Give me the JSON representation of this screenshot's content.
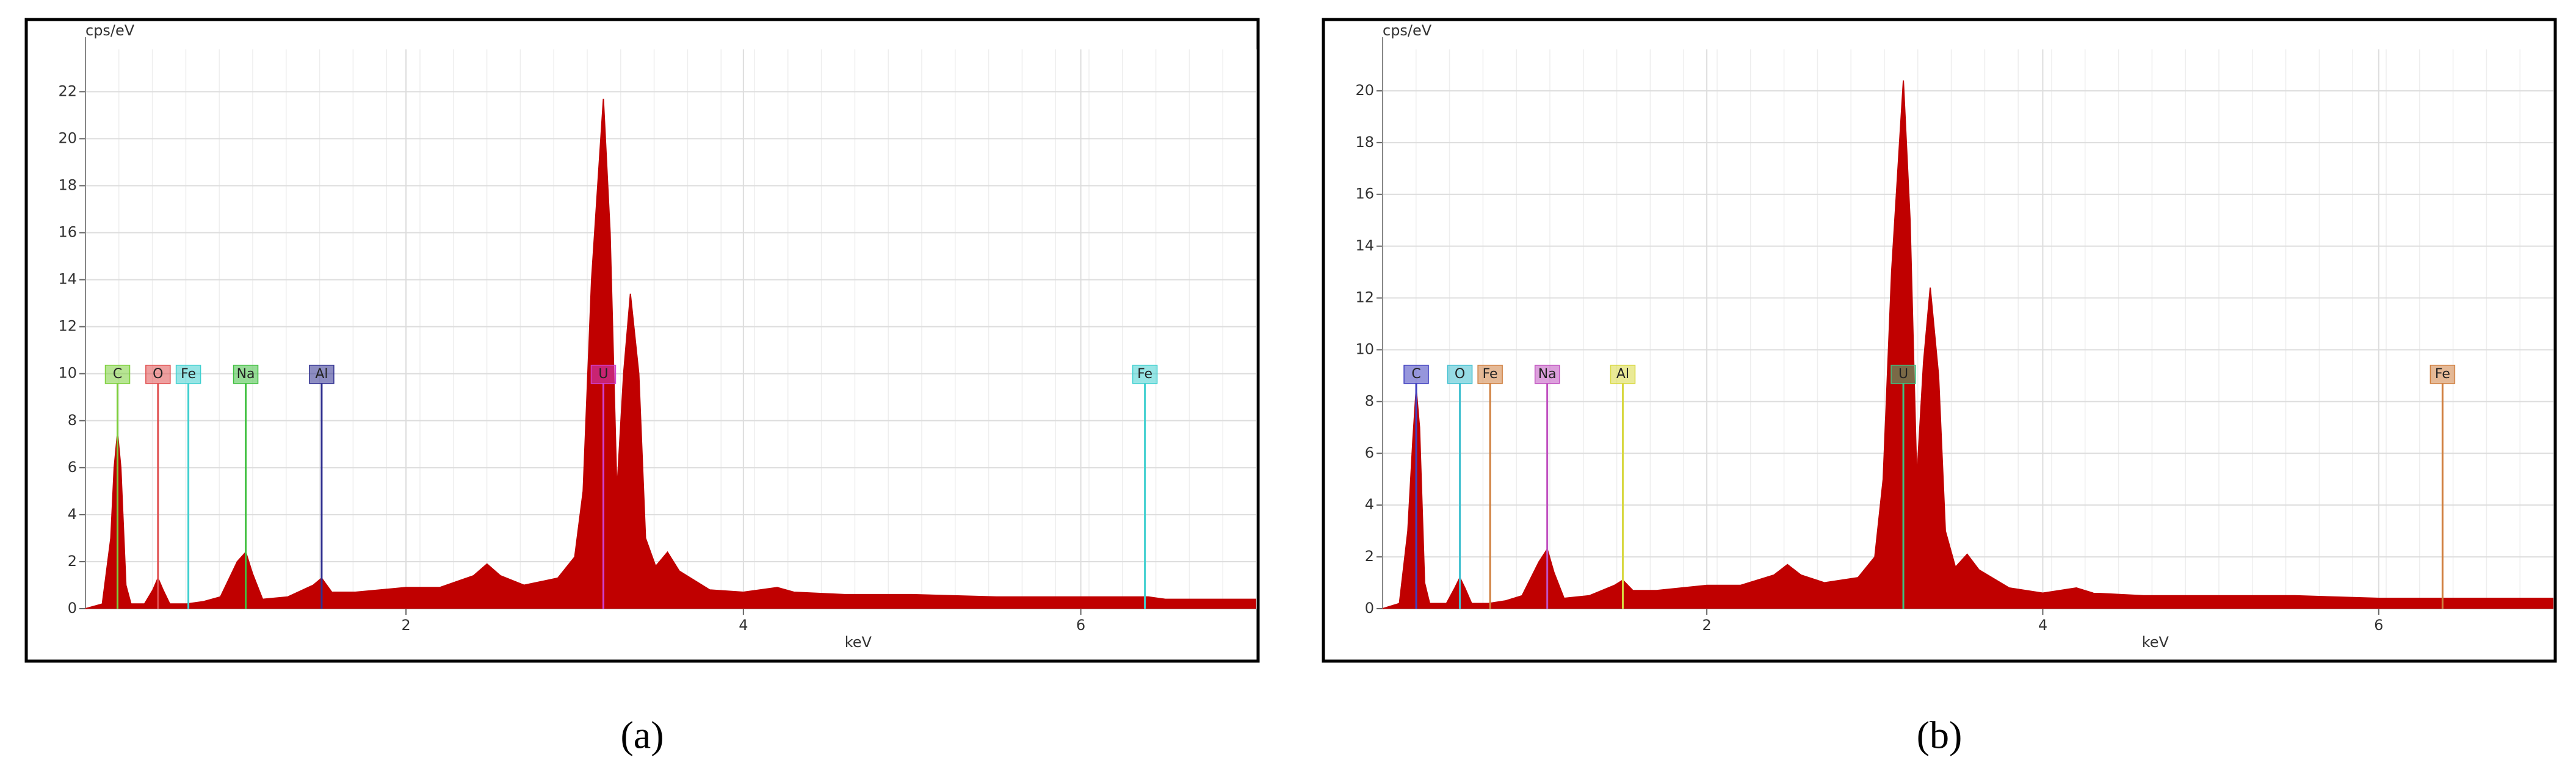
{
  "chart_data": [
    {
      "type": "area",
      "y_label": "cps/eV",
      "x_label": "keV",
      "caption": "(a)",
      "color": "#c00000",
      "xlim": [
        0.1,
        7.04
      ],
      "ylim": [
        0,
        23.8
      ],
      "xticks": [
        2,
        4,
        6
      ],
      "yticks": [
        0,
        2,
        4,
        6,
        8,
        10,
        12,
        14,
        16,
        18,
        20,
        22
      ],
      "grid": true,
      "x": [
        0.1,
        0.2,
        0.25,
        0.27,
        0.29,
        0.31,
        0.34,
        0.37,
        0.45,
        0.5,
        0.53,
        0.56,
        0.6,
        0.7,
        0.8,
        0.9,
        1.0,
        1.05,
        1.09,
        1.15,
        1.3,
        1.45,
        1.5,
        1.56,
        1.7,
        2.0,
        2.2,
        2.4,
        2.48,
        2.56,
        2.7,
        2.9,
        3.0,
        3.05,
        3.1,
        3.17,
        3.21,
        3.25,
        3.29,
        3.33,
        3.38,
        3.42,
        3.48,
        3.55,
        3.62,
        3.8,
        4.0,
        4.2,
        4.3,
        4.6,
        5.0,
        5.5,
        6.0,
        6.4,
        6.5,
        7.04
      ],
      "values": [
        0,
        0.2,
        3,
        6,
        7.5,
        6,
        1,
        0.2,
        0.2,
        0.8,
        1.3,
        0.8,
        0.2,
        0.2,
        0.3,
        0.5,
        2.0,
        2.4,
        1.5,
        0.4,
        0.5,
        1.0,
        1.3,
        0.7,
        0.7,
        0.9,
        0.9,
        1.4,
        1.9,
        1.4,
        1.0,
        1.3,
        2.2,
        5,
        14,
        21.7,
        16,
        5,
        10,
        13.4,
        10,
        3,
        1.8,
        2.4,
        1.6,
        0.8,
        0.7,
        0.9,
        0.7,
        0.6,
        0.6,
        0.5,
        0.5,
        0.5,
        0.4,
        0.4
      ],
      "markers": [
        {
          "label": "C",
          "x": 0.29,
          "color": "#7ccf3a"
        },
        {
          "label": "O",
          "x": 0.53,
          "color": "#e05050"
        },
        {
          "label": "Fe",
          "x": 0.71,
          "color": "#40d0d0"
        },
        {
          "label": "Na",
          "x": 1.05,
          "color": "#40c040"
        },
        {
          "label": "Al",
          "x": 1.5,
          "color": "#303090"
        },
        {
          "label": "U",
          "x": 3.17,
          "color": "#d040d0"
        },
        {
          "label": "Fe",
          "x": 6.38,
          "color": "#40d0d0"
        }
      ]
    },
    {
      "type": "area",
      "y_label": "cps/eV",
      "x_label": "keV",
      "caption": "(b)",
      "color": "#c00000",
      "xlim": [
        0.07,
        7.04
      ],
      "ylim": [
        0,
        21.6
      ],
      "xticks": [
        2,
        4,
        6
      ],
      "yticks": [
        0,
        2,
        4,
        6,
        8,
        10,
        12,
        14,
        16,
        18,
        20
      ],
      "grid": true,
      "x": [
        0.07,
        0.17,
        0.22,
        0.25,
        0.27,
        0.29,
        0.32,
        0.35,
        0.45,
        0.5,
        0.53,
        0.56,
        0.6,
        0.7,
        0.8,
        0.9,
        1.0,
        1.05,
        1.09,
        1.15,
        1.3,
        1.45,
        1.5,
        1.56,
        1.7,
        2.0,
        2.2,
        2.4,
        2.48,
        2.56,
        2.7,
        2.9,
        3.0,
        3.05,
        3.1,
        3.17,
        3.21,
        3.25,
        3.29,
        3.33,
        3.38,
        3.42,
        3.48,
        3.55,
        3.62,
        3.8,
        4.0,
        4.2,
        4.3,
        4.6,
        5.0,
        5.5,
        6.0,
        6.4,
        6.5,
        7.04
      ],
      "values": [
        0,
        0.2,
        3,
        6.5,
        8.5,
        7,
        1,
        0.2,
        0.2,
        0.8,
        1.2,
        0.8,
        0.2,
        0.2,
        0.3,
        0.5,
        1.8,
        2.3,
        1.4,
        0.4,
        0.5,
        0.9,
        1.1,
        0.7,
        0.7,
        0.9,
        0.9,
        1.3,
        1.7,
        1.3,
        1.0,
        1.2,
        2.0,
        5,
        13,
        20.4,
        15,
        5,
        9.5,
        12.4,
        9,
        3,
        1.6,
        2.1,
        1.5,
        0.8,
        0.6,
        0.8,
        0.6,
        0.5,
        0.5,
        0.5,
        0.4,
        0.4,
        0.4,
        0.4
      ],
      "markers": [
        {
          "label": "C",
          "x": 0.27,
          "color": "#4040c0"
        },
        {
          "label": "O",
          "x": 0.53,
          "color": "#40c0d0"
        },
        {
          "label": "Fe",
          "x": 0.71,
          "color": "#d08040"
        },
        {
          "label": "Na",
          "x": 1.05,
          "color": "#c050c0"
        },
        {
          "label": "Al",
          "x": 1.5,
          "color": "#d8d840"
        },
        {
          "label": "U",
          "x": 3.17,
          "color": "#40c080"
        },
        {
          "label": "Fe",
          "x": 6.38,
          "color": "#d08040"
        }
      ]
    }
  ]
}
